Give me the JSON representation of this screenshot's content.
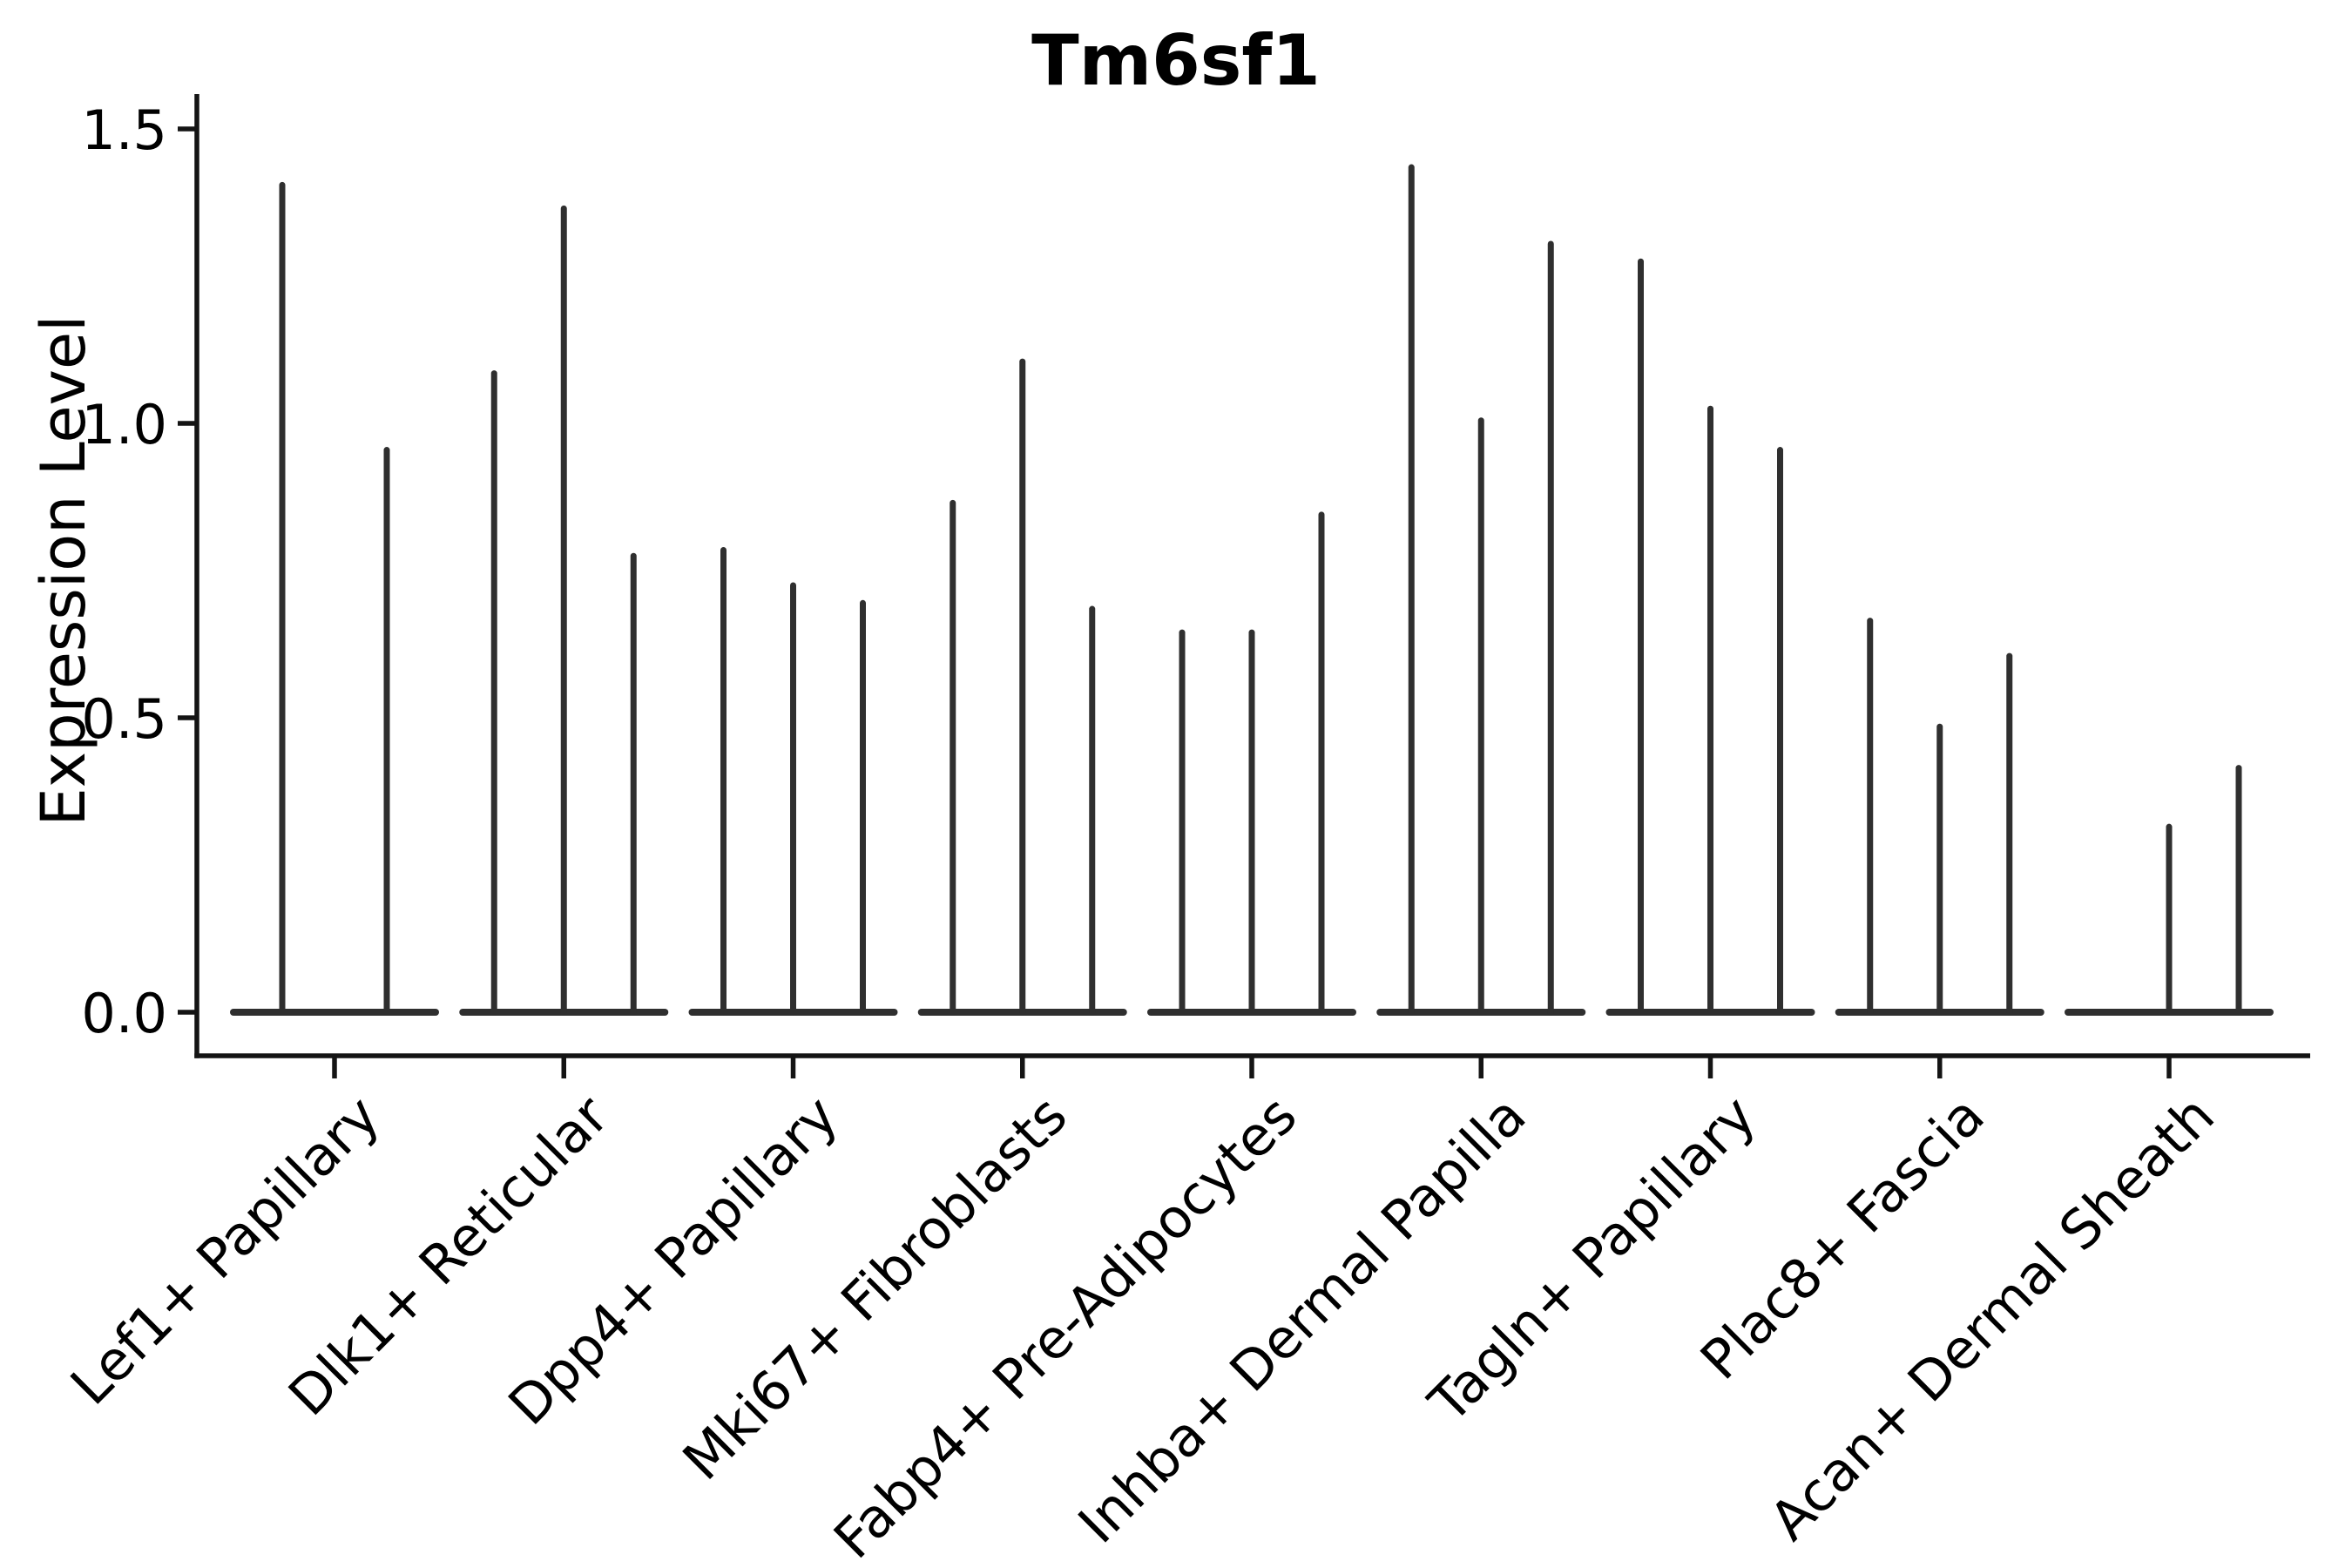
{
  "chart_data": {
    "type": "violin",
    "title": "Tm6sf1",
    "ylabel": "Expression Level",
    "xlabel": "",
    "ylim": [
      -0.07,
      1.56
    ],
    "grid": false,
    "legend": "none",
    "yticks": [
      {
        "value": 0.0,
        "label": "0.0"
      },
      {
        "value": 0.5,
        "label": "0.5"
      },
      {
        "value": 1.0,
        "label": "1.0"
      },
      {
        "value": 1.5,
        "label": "1.5"
      }
    ],
    "categories": [
      "Lef1+ Papillary",
      "Dlk1+ Reticular",
      "Dpp4+ Papillary",
      "Mki67+ Fibroblasts",
      "Fabp4+ Pre-Adipocytes",
      "Inhba+ Dermal Papilla",
      "Tagln+ Papillary",
      "Plac8+ Fascia",
      "Acan+ Dermal Sheath"
    ],
    "groups": [
      {
        "category": "Lef1+ Papillary",
        "violin_max_values": [
          1.41,
          0.96
        ]
      },
      {
        "category": "Dlk1+ Reticular",
        "violin_max_values": [
          1.09,
          1.37,
          0.78
        ]
      },
      {
        "category": "Dpp4+ Papillary",
        "violin_max_values": [
          0.79,
          0.73,
          0.7
        ]
      },
      {
        "category": "Mki67+ Fibroblasts",
        "violin_max_values": [
          0.87,
          1.11,
          0.69
        ]
      },
      {
        "category": "Fabp4+ Pre-Adipocytes",
        "violin_max_values": [
          0.65,
          0.65,
          0.85
        ]
      },
      {
        "category": "Inhba+ Dermal Papilla",
        "violin_max_values": [
          1.44,
          1.01,
          1.31
        ]
      },
      {
        "category": "Tagln+ Papillary",
        "violin_max_values": [
          1.28,
          1.03,
          0.96
        ]
      },
      {
        "category": "Plac8+ Fascia",
        "violin_max_values": [
          0.67,
          0.49,
          0.61
        ]
      },
      {
        "category": "Acan+ Dermal Sheath",
        "violin_max_values": [
          0.0,
          0.32,
          0.42
        ]
      }
    ],
    "colors": {
      "violin": "#2f2f2f",
      "axis": "#141414",
      "text": "#000000",
      "background": "#ffffff"
    }
  }
}
